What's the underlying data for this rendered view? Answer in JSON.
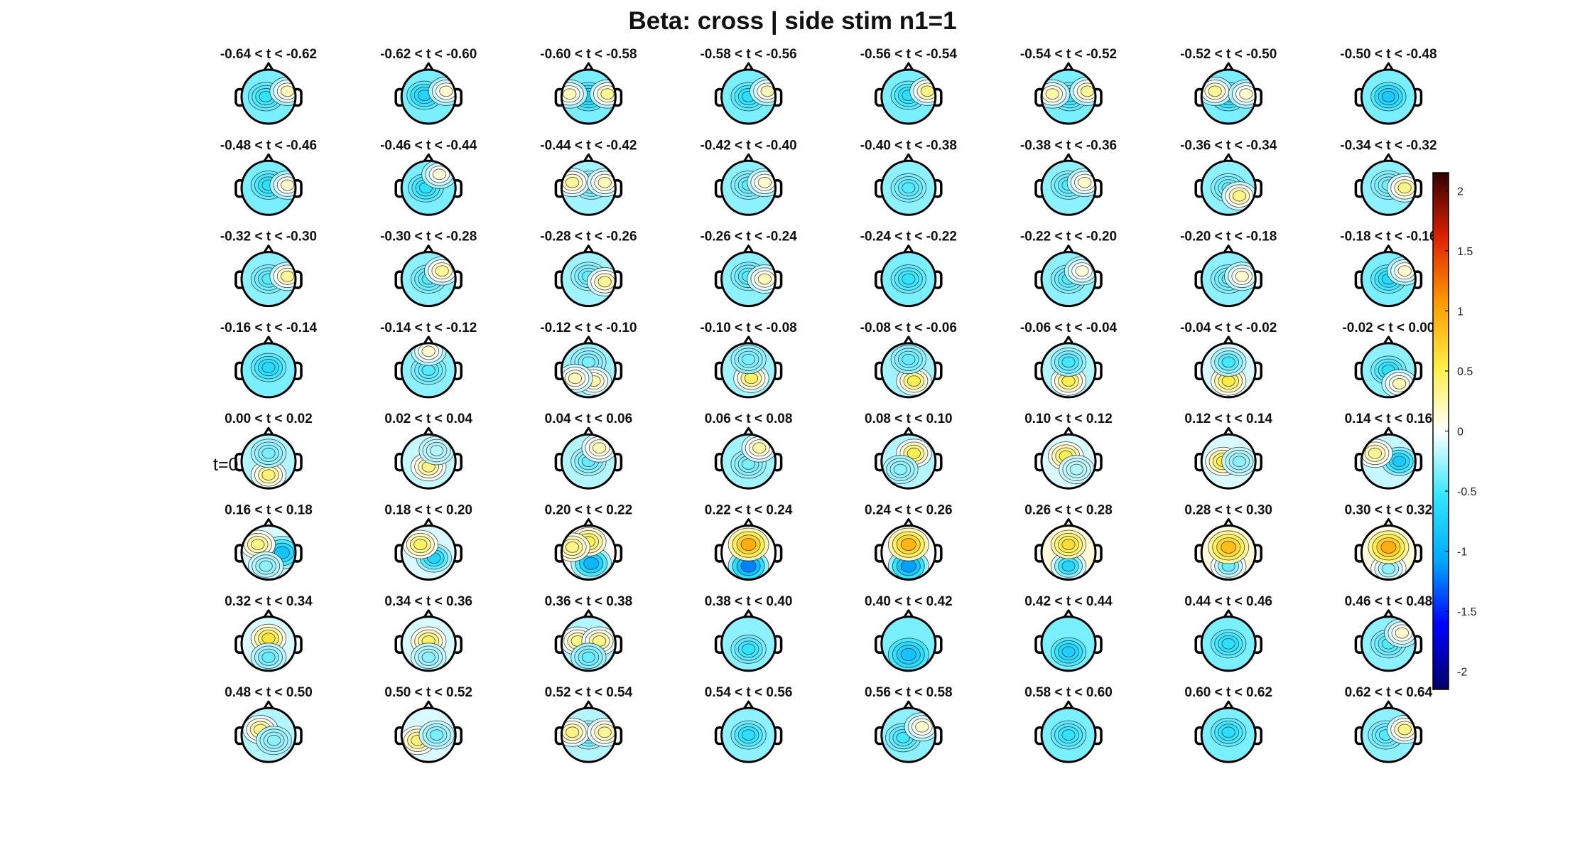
{
  "figure": {
    "title": "Beta: cross | side stim  n1=1",
    "t_zero_marker": "t=0"
  },
  "time_windows": [
    "-0.64 < t < -0.62",
    "-0.62 < t < -0.60",
    "-0.60 < t < -0.58",
    "-0.58 < t < -0.56",
    "-0.56 < t < -0.54",
    "-0.54 < t < -0.52",
    "-0.52 < t < -0.50",
    "-0.50 < t < -0.48",
    "-0.48 < t < -0.46",
    "-0.46 < t < -0.44",
    "-0.44 < t < -0.42",
    "-0.42 < t < -0.40",
    "-0.40 < t < -0.38",
    "-0.38 < t < -0.36",
    "-0.36 < t < -0.34",
    "-0.34 < t < -0.32",
    "-0.32 < t < -0.30",
    "-0.30 < t < -0.28",
    "-0.28 < t < -0.26",
    "-0.26 < t < -0.24",
    "-0.24 < t < -0.22",
    "-0.22 < t < -0.20",
    "-0.20 < t < -0.18",
    "-0.18 < t < -0.16",
    "-0.16 < t < -0.14",
    "-0.14 < t < -0.12",
    "-0.12 < t < -0.10",
    "-0.10 < t < -0.08",
    "-0.08 < t < -0.06",
    "-0.06 < t < -0.04",
    "-0.04 < t < -0.02",
    "-0.02 < t < 0.00",
    "0.00 < t < 0.02",
    "0.02 < t < 0.04",
    "0.04 < t < 0.06",
    "0.06 < t < 0.08",
    "0.08 < t < 0.10",
    "0.10 < t < 0.12",
    "0.12 < t < 0.14",
    "0.14 < t < 0.16",
    "0.16 < t < 0.18",
    "0.18 < t < 0.20",
    "0.20 < t < 0.22",
    "0.22 < t < 0.24",
    "0.24 < t < 0.26",
    "0.26 < t < 0.28",
    "0.28 < t < 0.30",
    "0.30 < t < 0.32",
    "0.32 < t < 0.34",
    "0.34 < t < 0.36",
    "0.36 < t < 0.38",
    "0.38 < t < 0.40",
    "0.40 < t < 0.42",
    "0.42 < t < 0.44",
    "0.44 < t < 0.46",
    "0.46 < t < 0.48",
    "0.48 < t < 0.50",
    "0.50 < t < 0.52",
    "0.52 < t < 0.54",
    "0.54 < t < 0.56",
    "0.56 < t < 0.58",
    "0.58 < t < 0.60",
    "0.60 < t < 0.62",
    "0.62 < t < 0.64"
  ],
  "topo_patterns": [
    {
      "bg": -0.35,
      "blobs": [
        [
          -0.1,
          0.0,
          -0.55
        ],
        [
          0.7,
          0.2,
          0.2
        ]
      ]
    },
    {
      "bg": -0.35,
      "blobs": [
        [
          -0.15,
          0.05,
          -0.7
        ],
        [
          0.65,
          0.2,
          0.15
        ]
      ]
    },
    {
      "bg": -0.35,
      "blobs": [
        [
          0.0,
          0.0,
          -0.75
        ],
        [
          -0.7,
          0.1,
          0.2
        ],
        [
          0.7,
          0.1,
          0.3
        ]
      ]
    },
    {
      "bg": -0.35,
      "blobs": [
        [
          0.0,
          0.0,
          -0.6
        ],
        [
          0.7,
          0.2,
          0.2
        ]
      ]
    },
    {
      "bg": -0.35,
      "blobs": [
        [
          0.0,
          0.05,
          -0.6
        ],
        [
          0.7,
          0.2,
          0.35
        ]
      ]
    },
    {
      "bg": -0.35,
      "blobs": [
        [
          0.05,
          0.0,
          -0.55
        ],
        [
          -0.6,
          0.1,
          0.25
        ],
        [
          0.7,
          0.2,
          0.3
        ]
      ]
    },
    {
      "bg": -0.35,
      "blobs": [
        [
          0.0,
          0.0,
          -0.7
        ],
        [
          -0.5,
          0.2,
          0.3
        ],
        [
          0.65,
          0.1,
          0.15
        ]
      ]
    },
    {
      "bg": -0.35,
      "blobs": [
        [
          0.0,
          0.0,
          -0.8
        ]
      ]
    },
    {
      "bg": -0.35,
      "blobs": [
        [
          0.0,
          0.1,
          -0.6
        ],
        [
          0.7,
          0.1,
          0.15
        ]
      ]
    },
    {
      "bg": -0.35,
      "blobs": [
        [
          -0.1,
          0.0,
          -0.6
        ],
        [
          0.4,
          0.5,
          0.1
        ]
      ]
    },
    {
      "bg": -0.25,
      "blobs": [
        [
          0.1,
          0.1,
          -0.4
        ],
        [
          -0.6,
          0.2,
          0.3
        ],
        [
          0.6,
          0.2,
          0.2
        ]
      ]
    },
    {
      "bg": -0.3,
      "blobs": [
        [
          0.0,
          0.1,
          -0.4
        ],
        [
          0.6,
          0.2,
          0.15
        ]
      ]
    },
    {
      "bg": -0.3,
      "blobs": [
        [
          0.0,
          0.0,
          -0.45
        ]
      ]
    },
    {
      "bg": -0.3,
      "blobs": [
        [
          0.0,
          0.1,
          -0.45
        ],
        [
          0.6,
          0.2,
          0.15
        ]
      ]
    },
    {
      "bg": -0.3,
      "blobs": [
        [
          0.0,
          0.0,
          -0.4
        ],
        [
          0.4,
          -0.3,
          0.35
        ]
      ]
    },
    {
      "bg": -0.3,
      "blobs": [
        [
          0.0,
          0.1,
          -0.35
        ],
        [
          0.6,
          0.0,
          0.35
        ]
      ]
    },
    {
      "bg": -0.3,
      "blobs": [
        [
          0.0,
          0.0,
          -0.45
        ],
        [
          0.7,
          0.1,
          0.3
        ]
      ]
    },
    {
      "bg": -0.3,
      "blobs": [
        [
          0.0,
          0.0,
          -0.45
        ],
        [
          0.5,
          0.3,
          0.3
        ]
      ]
    },
    {
      "bg": -0.25,
      "blobs": [
        [
          0.0,
          0.1,
          -0.4
        ],
        [
          0.6,
          -0.1,
          0.3
        ]
      ]
    },
    {
      "bg": -0.3,
      "blobs": [
        [
          0.0,
          0.1,
          -0.45
        ],
        [
          0.6,
          0.0,
          0.2
        ]
      ]
    },
    {
      "bg": -0.35,
      "blobs": [
        [
          0.0,
          0.0,
          -0.55
        ]
      ]
    },
    {
      "bg": -0.3,
      "blobs": [
        [
          0.0,
          0.0,
          -0.45
        ],
        [
          0.5,
          0.3,
          0.1
        ]
      ]
    },
    {
      "bg": -0.3,
      "blobs": [
        [
          0.0,
          0.0,
          -0.4
        ],
        [
          0.5,
          0.1,
          0.15
        ]
      ]
    },
    {
      "bg": -0.35,
      "blobs": [
        [
          0.0,
          0.0,
          -0.65
        ],
        [
          0.6,
          0.3,
          0.15
        ]
      ]
    },
    {
      "bg": -0.35,
      "blobs": [
        [
          0.0,
          0.1,
          -0.65
        ]
      ]
    },
    {
      "bg": -0.3,
      "blobs": [
        [
          0.0,
          0.0,
          -0.45
        ],
        [
          0.0,
          0.7,
          0.15
        ]
      ]
    },
    {
      "bg": -0.25,
      "blobs": [
        [
          0.0,
          0.3,
          -0.35
        ],
        [
          0.2,
          -0.4,
          0.25
        ],
        [
          -0.5,
          -0.3,
          0.2
        ]
      ]
    },
    {
      "bg": -0.25,
      "blobs": [
        [
          0.1,
          -0.3,
          0.45
        ],
        [
          0.0,
          0.4,
          -0.35
        ]
      ]
    },
    {
      "bg": -0.25,
      "blobs": [
        [
          0.2,
          -0.4,
          0.5
        ],
        [
          0.0,
          0.4,
          -0.4
        ]
      ]
    },
    {
      "bg": -0.2,
      "blobs": [
        [
          0.0,
          -0.4,
          0.5
        ],
        [
          0.0,
          0.3,
          -0.5
        ]
      ]
    },
    {
      "bg": -0.1,
      "blobs": [
        [
          0.0,
          -0.4,
          0.55
        ],
        [
          0.0,
          0.3,
          -0.5
        ]
      ]
    },
    {
      "bg": -0.3,
      "blobs": [
        [
          0.0,
          0.0,
          -0.6
        ],
        [
          0.4,
          -0.5,
          0.2
        ]
      ]
    },
    {
      "bg": -0.2,
      "blobs": [
        [
          0.0,
          -0.5,
          0.4
        ],
        [
          0.0,
          0.3,
          -0.35
        ]
      ]
    },
    {
      "bg": -0.15,
      "blobs": [
        [
          0.0,
          -0.2,
          0.35
        ],
        [
          0.3,
          0.4,
          -0.2
        ]
      ]
    },
    {
      "bg": -0.2,
      "blobs": [
        [
          0.0,
          0.0,
          -0.4
        ],
        [
          0.4,
          0.5,
          0.2
        ]
      ]
    },
    {
      "bg": -0.25,
      "blobs": [
        [
          0.0,
          -0.1,
          -0.35
        ],
        [
          0.4,
          0.5,
          0.25
        ]
      ]
    },
    {
      "bg": -0.2,
      "blobs": [
        [
          0.2,
          0.3,
          0.5
        ],
        [
          -0.3,
          -0.3,
          -0.3
        ]
      ]
    },
    {
      "bg": -0.1,
      "blobs": [
        [
          -0.1,
          0.2,
          0.5
        ],
        [
          0.3,
          -0.3,
          -0.2
        ]
      ]
    },
    {
      "bg": -0.1,
      "blobs": [
        [
          -0.2,
          0.0,
          0.55
        ],
        [
          0.4,
          0.0,
          -0.3
        ]
      ]
    },
    {
      "bg": -0.15,
      "blobs": [
        [
          0.4,
          0.0,
          -0.8
        ],
        [
          -0.5,
          0.3,
          0.3
        ]
      ]
    },
    {
      "bg": -0.1,
      "blobs": [
        [
          0.5,
          0.0,
          -0.85
        ],
        [
          -0.4,
          0.3,
          0.35
        ],
        [
          -0.1,
          -0.5,
          -0.3
        ]
      ]
    },
    {
      "bg": -0.1,
      "blobs": [
        [
          0.2,
          -0.2,
          -0.7
        ],
        [
          -0.3,
          0.3,
          0.45
        ]
      ]
    },
    {
      "bg": 0.0,
      "blobs": [
        [
          0.1,
          -0.4,
          -0.95
        ],
        [
          0.0,
          0.4,
          0.5
        ],
        [
          -0.6,
          0.2,
          0.35
        ]
      ]
    },
    {
      "bg": 0.0,
      "blobs": [
        [
          0.0,
          -0.5,
          -1.2
        ],
        [
          0.0,
          0.3,
          0.95
        ]
      ]
    },
    {
      "bg": 0.0,
      "blobs": [
        [
          0.0,
          -0.5,
          -1.1
        ],
        [
          0.0,
          0.3,
          0.9
        ]
      ]
    },
    {
      "bg": 0.1,
      "blobs": [
        [
          0.0,
          -0.5,
          -0.7
        ],
        [
          0.0,
          0.3,
          0.65
        ]
      ]
    },
    {
      "bg": 0.1,
      "blobs": [
        [
          0.0,
          -0.5,
          -0.4
        ],
        [
          0.0,
          0.2,
          0.85
        ]
      ]
    },
    {
      "bg": 0.1,
      "blobs": [
        [
          0.0,
          -0.6,
          -0.3
        ],
        [
          0.0,
          0.2,
          0.95
        ]
      ]
    },
    {
      "bg": -0.1,
      "blobs": [
        [
          0.0,
          0.2,
          0.6
        ],
        [
          0.0,
          -0.5,
          -0.4
        ]
      ]
    },
    {
      "bg": -0.1,
      "blobs": [
        [
          0.0,
          0.1,
          0.45
        ],
        [
          0.0,
          -0.5,
          -0.3
        ]
      ]
    },
    {
      "bg": -0.2,
      "blobs": [
        [
          -0.4,
          0.1,
          0.35
        ],
        [
          0.4,
          0.1,
          0.35
        ],
        [
          0.0,
          -0.5,
          -0.4
        ]
      ]
    },
    {
      "bg": -0.3,
      "blobs": [
        [
          0.0,
          -0.2,
          -0.55
        ]
      ]
    },
    {
      "bg": -0.35,
      "blobs": [
        [
          0.0,
          -0.4,
          -0.85
        ]
      ]
    },
    {
      "bg": -0.35,
      "blobs": [
        [
          0.0,
          -0.3,
          -0.75
        ]
      ]
    },
    {
      "bg": -0.35,
      "blobs": [
        [
          0.0,
          0.0,
          -0.6
        ]
      ]
    },
    {
      "bg": -0.3,
      "blobs": [
        [
          0.0,
          0.0,
          -0.45
        ],
        [
          0.5,
          0.4,
          0.15
        ]
      ]
    },
    {
      "bg": -0.2,
      "blobs": [
        [
          -0.3,
          0.2,
          0.35
        ],
        [
          0.2,
          -0.2,
          -0.3
        ]
      ]
    },
    {
      "bg": -0.1,
      "blobs": [
        [
          -0.4,
          -0.2,
          0.4
        ],
        [
          0.3,
          0.0,
          -0.35
        ]
      ]
    },
    {
      "bg": -0.2,
      "blobs": [
        [
          0.0,
          0.0,
          -0.5
        ],
        [
          -0.6,
          0.1,
          0.35
        ],
        [
          0.6,
          0.1,
          0.3
        ]
      ]
    },
    {
      "bg": -0.3,
      "blobs": [
        [
          0.0,
          0.0,
          -0.6
        ]
      ]
    },
    {
      "bg": -0.3,
      "blobs": [
        [
          -0.2,
          -0.1,
          -0.5
        ],
        [
          0.5,
          0.3,
          0.15
        ]
      ]
    },
    {
      "bg": -0.35,
      "blobs": [
        [
          0.0,
          0.0,
          -0.55
        ]
      ]
    },
    {
      "bg": -0.35,
      "blobs": [
        [
          0.0,
          0.1,
          -0.6
        ]
      ]
    },
    {
      "bg": -0.3,
      "blobs": [
        [
          -0.1,
          0.0,
          -0.45
        ],
        [
          0.6,
          0.2,
          0.35
        ]
      ]
    }
  ],
  "colorbar": {
    "min": -2.15,
    "max": 2.15,
    "ticks": [
      2,
      1.5,
      1,
      0.5,
      0,
      -0.5,
      -1,
      -1.5,
      -2
    ],
    "tick_labels": [
      "2",
      "1.5",
      "1",
      "0.5",
      "0",
      "-0.5",
      "-1",
      "-1.5",
      "-2"
    ],
    "colormap": [
      "#000066",
      "#0000ff",
      "#00aaff",
      "#33e6ff",
      "#ffffff",
      "#ffee44",
      "#ff9900",
      "#dd2200",
      "#330000"
    ]
  }
}
